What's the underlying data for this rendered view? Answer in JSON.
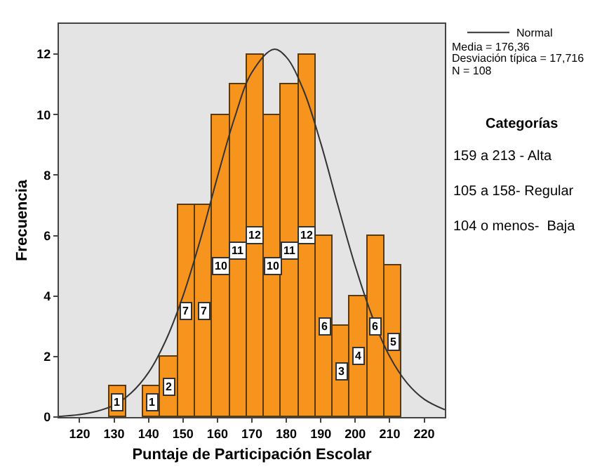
{
  "chart_data": {
    "type": "histogram",
    "xlabel": "Puntaje de Participación Escolar",
    "ylabel": "Frecuencia",
    "bins": [
      128.5,
      133.5,
      138.5,
      143.5,
      148.5,
      153.5,
      158.5,
      163.5,
      168.5,
      173.5,
      178.5,
      183.5,
      188.5,
      193.5,
      198.5,
      203.5,
      208.5,
      213.5
    ],
    "values": [
      1,
      0,
      1,
      2,
      7,
      7,
      10,
      11,
      12,
      10,
      11,
      12,
      6,
      3,
      4,
      6,
      5
    ],
    "value_labels": [
      "1",
      null,
      "1",
      "2",
      "7",
      "7",
      "10",
      "11",
      "12",
      "10",
      "11",
      "12",
      "6",
      "3",
      "4",
      "6",
      "5"
    ],
    "color": "#f7941d",
    "series": [
      {
        "type": "line",
        "name": "Normal",
        "color": "#333333",
        "x": [
          114,
          120,
          125,
          130,
          135,
          140,
          145,
          150,
          155,
          160,
          165,
          170,
          176.36,
          180,
          185,
          190,
          195,
          200,
          205,
          210,
          215,
          220,
          226
        ],
        "values": [
          0.02,
          0.08,
          0.19,
          0.39,
          0.8,
          1.47,
          2.53,
          4.0,
          5.85,
          7.94,
          9.9,
          11.4,
          12.16,
          11.9,
          10.8,
          9.05,
          6.98,
          4.99,
          3.3,
          2.0,
          1.13,
          0.59,
          0.24
        ]
      }
    ],
    "xlim": [
      114,
      226
    ],
    "xticks": [
      120,
      130,
      140,
      150,
      160,
      170,
      180,
      190,
      200,
      210,
      220
    ],
    "ylim": [
      0,
      13
    ],
    "yticks": [
      0,
      2,
      4,
      6,
      8,
      10,
      12
    ],
    "grid": false,
    "legend": "top right",
    "annotations": [
      "Media = 176,36",
      "Desviación típica = 17,716",
      "N = 108",
      "Categorías",
      "159 a 213 - Alta",
      "105 a 158- Regular",
      "104 o menos-  Baja"
    ]
  }
}
